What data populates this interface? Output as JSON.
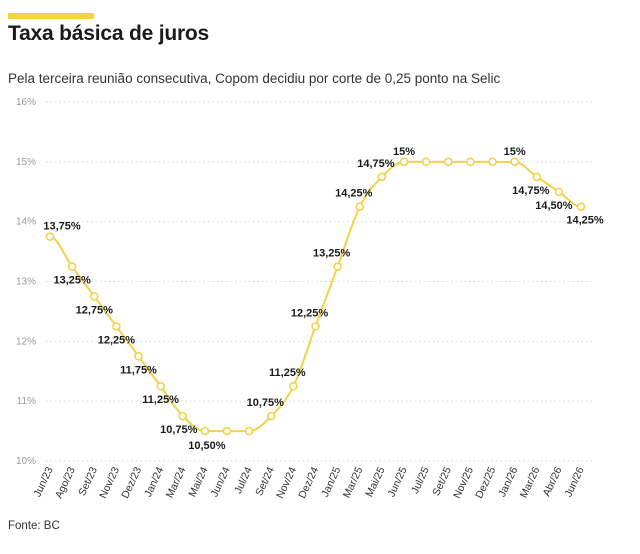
{
  "title": "Taxa básica de juros",
  "subtitle": "Pela terceira reunião consecutiva, Copom decidiu por corte de 0,25 ponto na Selic",
  "source": "Fonte: BC",
  "colors": {
    "accent": "#f5d33d",
    "line": "#f2d24a",
    "grid": "#d6d6d6",
    "text": "#1a1a1a",
    "axis_text": "#999999"
  },
  "chart_data": {
    "type": "line",
    "categories": [
      "Jun/23",
      "Ago/23",
      "Set/23",
      "Nov/23",
      "Dez/23",
      "Jan/24",
      "Mar/24",
      "Mai/24",
      "Jun/24",
      "Jul/24",
      "Set/24",
      "Nov/24",
      "Dez/24",
      "Jan/25",
      "Mar/25",
      "Mai/25",
      "Jun/25",
      "Jul/25",
      "Set/25",
      "Nov/25",
      "Dez/25",
      "Jan/26",
      "Mar/26",
      "Abr/26",
      "Jun/26"
    ],
    "series": [
      {
        "values": [
          13.75,
          13.25,
          12.75,
          12.25,
          11.75,
          11.25,
          10.75,
          10.5,
          10.5,
          10.5,
          10.75,
          11.25,
          12.25,
          13.25,
          14.25,
          14.75,
          15,
          15,
          15,
          15,
          15,
          15,
          14.75,
          14.5,
          14.25
        ]
      }
    ],
    "data_labels": [
      "13,75%",
      "13,25%",
      "12,75%",
      "12,25%",
      "11,75%",
      "11,25%",
      "10,75%",
      "10,50%",
      "",
      "",
      "10,75%",
      "11,25%",
      "12,25%",
      "13,25%",
      "14,25%",
      "14,75%",
      "15%",
      "",
      "",
      "",
      "",
      "15%",
      "14,75%",
      "14,50%",
      "14,25%"
    ],
    "y_ticks": [
      "10%",
      "11%",
      "12%",
      "13%",
      "14%",
      "15%",
      "16%"
    ],
    "ylim": [
      10,
      16
    ],
    "grid": true
  }
}
